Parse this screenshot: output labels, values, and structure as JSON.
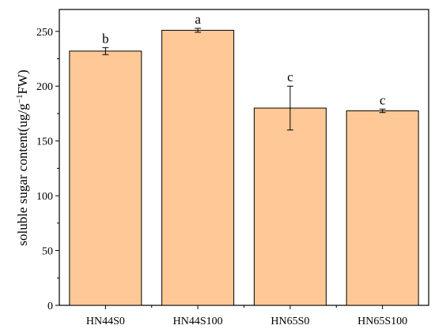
{
  "chart_data": {
    "type": "bar",
    "categories": [
      "HN44S0",
      "HN44S100",
      "HN65S0",
      "HN65S100"
    ],
    "values": [
      232,
      251,
      180,
      177.5
    ],
    "errors": [
      3.2,
      1.8,
      20,
      1.6
    ],
    "significance": [
      "b",
      "a",
      "c",
      "c"
    ],
    "title": "",
    "xlabel": "",
    "ylabel_parts": [
      "soluble sugar content(ug/g",
      "−1",
      "FW)"
    ],
    "ylim": [
      0,
      270
    ],
    "yticks": [
      0,
      50,
      100,
      150,
      200,
      250
    ],
    "ytick_labels": [
      "0",
      "50",
      "100",
      "150",
      "200",
      "250"
    ],
    "bar_color": "#FFC896",
    "grid": false,
    "legend": "none"
  }
}
